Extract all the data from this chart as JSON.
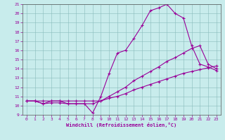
{
  "xlabel": "Windchill (Refroidissement éolien,°C)",
  "bg_color": "#c8ecec",
  "line_color": "#990099",
  "grid_color": "#a0c8c8",
  "xmin": -0.5,
  "xmax": 23.5,
  "ymin": 9,
  "ymax": 21,
  "yticks": [
    9,
    10,
    11,
    12,
    13,
    14,
    15,
    16,
    17,
    18,
    19,
    20,
    21
  ],
  "xticks": [
    0,
    1,
    2,
    3,
    4,
    5,
    6,
    7,
    8,
    9,
    10,
    11,
    12,
    13,
    14,
    15,
    16,
    17,
    18,
    19,
    20,
    21,
    22,
    23
  ],
  "line1_x": [
    0,
    1,
    2,
    3,
    4,
    5,
    6,
    7,
    8,
    9,
    10,
    11,
    12,
    13,
    14,
    15,
    16,
    17,
    18,
    19,
    20,
    21,
    22,
    23
  ],
  "line1_y": [
    10.5,
    10.5,
    10.2,
    10.5,
    10.5,
    10.2,
    10.2,
    10.2,
    9.2,
    11.0,
    13.5,
    15.7,
    16.0,
    17.3,
    18.7,
    20.3,
    20.6,
    21.0,
    20.0,
    19.5,
    16.5,
    14.5,
    14.2,
    13.8
  ],
  "line2_x": [
    0,
    1,
    2,
    3,
    4,
    5,
    6,
    7,
    8,
    9,
    10,
    11,
    12,
    13,
    14,
    15,
    16,
    17,
    18,
    19,
    20,
    21,
    22,
    23
  ],
  "line2_y": [
    10.5,
    10.5,
    10.2,
    10.3,
    10.3,
    10.2,
    10.2,
    10.2,
    10.2,
    10.5,
    11.0,
    11.5,
    12.0,
    12.7,
    13.2,
    13.7,
    14.2,
    14.8,
    15.2,
    15.7,
    16.2,
    16.5,
    14.5,
    14.0
  ],
  "line3_x": [
    0,
    1,
    2,
    3,
    4,
    5,
    6,
    7,
    8,
    9,
    10,
    11,
    12,
    13,
    14,
    15,
    16,
    17,
    18,
    19,
    20,
    21,
    22,
    23
  ],
  "line3_y": [
    10.5,
    10.5,
    10.5,
    10.5,
    10.5,
    10.5,
    10.5,
    10.5,
    10.5,
    10.5,
    10.8,
    11.0,
    11.3,
    11.7,
    12.0,
    12.3,
    12.6,
    12.9,
    13.2,
    13.5,
    13.7,
    13.9,
    14.1,
    14.3
  ]
}
